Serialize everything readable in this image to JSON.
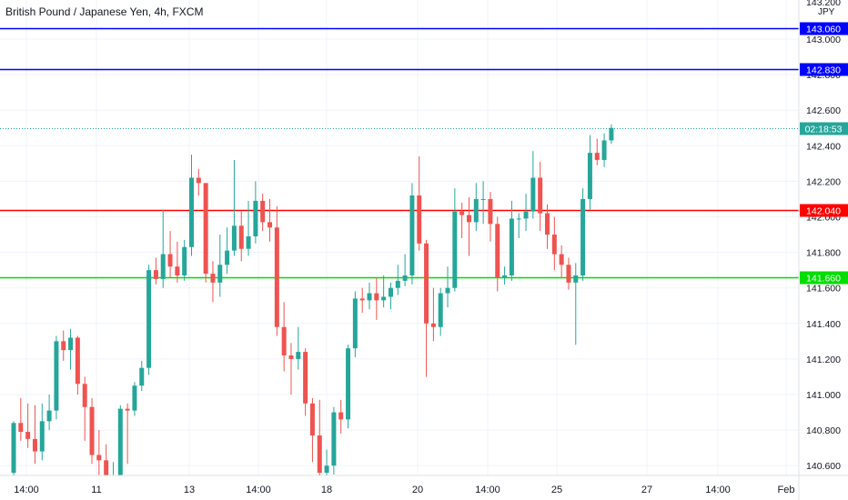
{
  "header": {
    "title": "British Pound / Japanese Yen, 4h, FXCM"
  },
  "chart_data": {
    "type": "candlestick",
    "title": "British Pound / Japanese Yen, 4h, FXCM",
    "currency_unit": "JPY",
    "ylim": [
      140.5,
      143.2
    ],
    "y_ticks": [
      "140.600",
      "140.800",
      "141.000",
      "141.200",
      "141.400",
      "141.600",
      "141.800",
      "142.000",
      "142.200",
      "142.400",
      "142.600",
      "142.800",
      "143.000"
    ],
    "y_tick_partial_top": "143.200",
    "x_ticks": [
      "14:00",
      "11",
      "13",
      "14:00",
      "18",
      "20",
      "14:00",
      "25",
      "27",
      "14:00",
      "Feb"
    ],
    "up_color": "#26a69a",
    "down_color": "#ef5350",
    "countdown_label": "02:18:53",
    "last_price": 142.5,
    "horizontal_lines": [
      {
        "value": 143.06,
        "label": "143.060",
        "color": "#0000ff"
      },
      {
        "value": 142.83,
        "label": "142.830",
        "color": "#0000ff"
      },
      {
        "value": 142.04,
        "label": "142.040",
        "color": "#ff0000"
      },
      {
        "value": 141.66,
        "label": "141.660",
        "color": "#00dd00"
      }
    ],
    "candles": [
      [
        140.56,
        140.84,
        140.54,
        140.85
      ],
      [
        140.84,
        140.79,
        140.74,
        140.98
      ],
      [
        140.79,
        140.75,
        140.7,
        140.95
      ],
      [
        140.75,
        140.68,
        140.61,
        140.94
      ],
      [
        140.68,
        140.85,
        140.63,
        140.95
      ],
      [
        140.85,
        140.91,
        140.8,
        141.0
      ],
      [
        140.91,
        141.3,
        140.86,
        141.33
      ],
      [
        141.3,
        141.25,
        141.19,
        141.36
      ],
      [
        141.25,
        141.32,
        141.14,
        141.37
      ],
      [
        141.32,
        141.06,
        141.0,
        141.33
      ],
      [
        141.06,
        140.93,
        140.74,
        141.1
      ],
      [
        140.93,
        140.66,
        140.61,
        140.98
      ],
      [
        140.66,
        140.63,
        140.54,
        140.8
      ],
      [
        140.63,
        140.54,
        140.49,
        140.72
      ],
      [
        140.54,
        140.54,
        140.47,
        140.62
      ],
      [
        140.54,
        140.92,
        140.48,
        140.94
      ],
      [
        140.92,
        140.91,
        140.61,
        140.95
      ],
      [
        140.91,
        141.05,
        140.88,
        141.07
      ],
      [
        141.05,
        141.15,
        141.02,
        141.19
      ],
      [
        141.15,
        141.7,
        141.11,
        141.73
      ],
      [
        141.7,
        141.65,
        141.62,
        141.77
      ],
      [
        141.65,
        141.79,
        141.6,
        142.04
      ],
      [
        141.79,
        141.72,
        141.66,
        141.92
      ],
      [
        141.72,
        141.67,
        141.63,
        141.86
      ],
      [
        141.67,
        141.83,
        141.64,
        141.87
      ],
      [
        141.83,
        142.22,
        141.78,
        142.35
      ],
      [
        142.22,
        142.19,
        142.12,
        142.27
      ],
      [
        142.19,
        141.68,
        141.63,
        142.19
      ],
      [
        141.68,
        141.63,
        141.52,
        141.75
      ],
      [
        141.63,
        141.73,
        141.55,
        141.9
      ],
      [
        141.73,
        141.81,
        141.68,
        141.94
      ],
      [
        141.81,
        141.95,
        141.78,
        142.32
      ],
      [
        141.95,
        141.82,
        141.75,
        142.03
      ],
      [
        141.82,
        141.89,
        141.78,
        142.09
      ],
      [
        141.89,
        142.09,
        141.85,
        142.2
      ],
      [
        142.09,
        141.97,
        141.92,
        142.13
      ],
      [
        141.97,
        141.94,
        141.86,
        142.1
      ],
      [
        141.94,
        141.38,
        141.33,
        142.06
      ],
      [
        141.38,
        141.22,
        141.13,
        141.52
      ],
      [
        141.22,
        141.2,
        141.0,
        141.29
      ],
      [
        141.2,
        141.24,
        141.14,
        141.38
      ],
      [
        141.24,
        140.95,
        140.88,
        141.26
      ],
      [
        140.95,
        140.77,
        140.62,
        140.98
      ],
      [
        140.77,
        140.56,
        140.51,
        140.97
      ],
      [
        140.56,
        140.6,
        140.53,
        140.69
      ],
      [
        140.6,
        140.9,
        140.55,
        140.93
      ],
      [
        140.9,
        140.86,
        140.78,
        140.97
      ],
      [
        140.86,
        141.26,
        140.81,
        141.28
      ],
      [
        141.26,
        141.54,
        141.21,
        141.58
      ],
      [
        141.54,
        141.53,
        141.46,
        141.6
      ],
      [
        141.53,
        141.57,
        141.48,
        141.63
      ],
      [
        141.57,
        141.53,
        141.42,
        141.66
      ],
      [
        141.53,
        141.55,
        141.49,
        141.67
      ],
      [
        141.55,
        141.6,
        141.48,
        141.63
      ],
      [
        141.6,
        141.64,
        141.56,
        141.73
      ],
      [
        141.64,
        141.67,
        141.61,
        141.79
      ],
      [
        141.67,
        142.12,
        141.62,
        142.19
      ],
      [
        142.12,
        141.85,
        141.81,
        142.34
      ],
      [
        141.85,
        141.4,
        141.1,
        141.87
      ],
      [
        141.4,
        141.38,
        141.3,
        141.6
      ],
      [
        141.38,
        141.57,
        141.33,
        141.6
      ],
      [
        141.57,
        141.6,
        141.49,
        141.72
      ],
      [
        141.6,
        142.03,
        141.58,
        142.16
      ],
      [
        142.03,
        142.01,
        141.88,
        142.08
      ],
      [
        142.01,
        141.97,
        141.78,
        142.11
      ],
      [
        141.97,
        142.1,
        141.92,
        142.19
      ],
      [
        142.1,
        142.1,
        141.96,
        142.2
      ],
      [
        142.1,
        141.96,
        141.86,
        142.14
      ],
      [
        141.96,
        141.66,
        141.58,
        142.0
      ],
      [
        141.66,
        141.67,
        141.62,
        141.72
      ],
      [
        141.67,
        141.99,
        141.64,
        142.09
      ],
      [
        141.99,
        141.99,
        141.88,
        142.02
      ],
      [
        141.99,
        142.03,
        141.92,
        142.13
      ],
      [
        142.03,
        142.22,
        141.99,
        142.37
      ],
      [
        142.22,
        142.02,
        141.92,
        142.31
      ],
      [
        142.02,
        141.9,
        141.82,
        142.07
      ],
      [
        141.9,
        141.79,
        141.7,
        142.0
      ],
      [
        141.79,
        141.73,
        141.66,
        141.84
      ],
      [
        141.73,
        141.63,
        141.59,
        141.77
      ],
      [
        141.63,
        141.67,
        141.28,
        141.74
      ],
      [
        141.67,
        142.1,
        141.64,
        142.16
      ],
      [
        142.1,
        142.36,
        142.04,
        142.46
      ],
      [
        142.36,
        142.32,
        142.29,
        142.44
      ],
      [
        142.32,
        142.43,
        142.28,
        142.47
      ],
      [
        142.43,
        142.5,
        142.41,
        142.52
      ]
    ]
  }
}
